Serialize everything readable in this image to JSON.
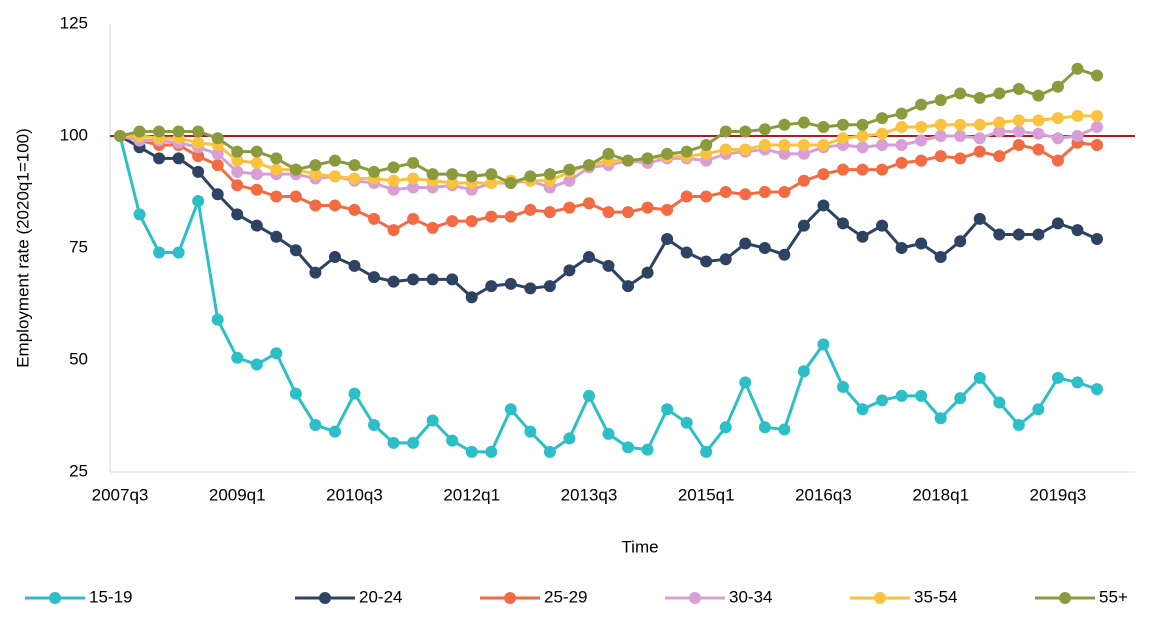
{
  "chart_data": {
    "type": "line",
    "x_label": "Time",
    "y_label": "Employment rate (2020q1=100)",
    "categories": [
      "2007q3",
      null,
      null,
      null,
      null,
      null,
      "2009q1",
      null,
      null,
      null,
      null,
      null,
      "2010q3",
      null,
      null,
      null,
      null,
      null,
      "2012q1",
      null,
      null,
      null,
      null,
      null,
      "2013q3",
      null,
      null,
      null,
      null,
      null,
      "2015q1",
      null,
      null,
      null,
      null,
      null,
      "2016q3",
      null,
      null,
      null,
      null,
      null,
      "2018q1",
      null,
      null,
      null,
      null,
      null,
      "2019q3",
      null,
      null
    ],
    "ylim": [
      25,
      125
    ],
    "yticks": [
      25,
      50,
      75,
      100,
      125
    ],
    "grid": false,
    "legend": "bottom",
    "reference_line": {
      "value": 100,
      "color": "#b01c1c"
    },
    "series": [
      {
        "name": "15-19",
        "color": "#2cbfc8",
        "values": [
          100,
          82.5,
          74,
          74,
          85.5,
          59,
          50.5,
          49,
          51.5,
          42.5,
          35.5,
          34,
          42.5,
          35.5,
          31.5,
          31.5,
          36.5,
          32,
          29.5,
          29.5,
          39,
          34,
          29.5,
          32.5,
          42,
          33.5,
          30.5,
          30,
          39,
          36,
          29.5,
          35,
          45,
          35,
          34.5,
          47.5,
          53.5,
          44,
          39,
          41,
          42,
          42,
          37,
          41.5,
          46,
          40.5,
          35.5,
          39,
          46,
          45,
          43.5
        ]
      },
      {
        "name": "20-24",
        "color": "#2e4262",
        "values": [
          100,
          97.5,
          95,
          95,
          92,
          87,
          82.5,
          80,
          77.5,
          74.5,
          69.5,
          73,
          71,
          68.5,
          67.5,
          68,
          68,
          68,
          64,
          66.5,
          67,
          66,
          66.5,
          70,
          73,
          71,
          66.5,
          69.5,
          77,
          74,
          72,
          72.5,
          76,
          75,
          73.5,
          80,
          84.5,
          80.5,
          77.5,
          80,
          75,
          76,
          73,
          76.5,
          81.5,
          78,
          78,
          78,
          80.5,
          79,
          77
        ]
      },
      {
        "name": "25-29",
        "color": "#f26b43",
        "values": [
          100,
          99,
          98,
          98,
          95.5,
          93.5,
          89,
          88,
          86.5,
          86.5,
          84.5,
          84.5,
          83.5,
          81.5,
          79,
          81.5,
          79.5,
          81,
          81,
          82,
          82,
          83.5,
          83,
          84,
          85,
          83,
          83,
          84,
          83.5,
          86.5,
          86.5,
          87.5,
          87,
          87.5,
          87.5,
          90,
          91.5,
          92.5,
          92.5,
          92.5,
          94,
          94.5,
          95.5,
          95,
          96.5,
          95.5,
          98,
          97,
          94.5,
          98.5,
          98
        ]
      },
      {
        "name": "30-34",
        "color": "#d79fd6",
        "values": [
          100,
          99,
          99,
          98.5,
          97.5,
          96,
          92,
          91.5,
          91.5,
          91.5,
          90.5,
          91,
          90,
          89.5,
          88,
          88.5,
          88.5,
          89,
          88,
          89.5,
          89.5,
          90,
          88.5,
          90,
          93,
          93.5,
          94.5,
          94,
          95,
          95,
          94.5,
          96,
          96.5,
          97,
          96,
          96,
          97.5,
          98,
          97.5,
          98,
          98,
          99,
          100,
          100,
          99.5,
          101,
          101,
          100.5,
          99.5,
          100,
          102
        ]
      },
      {
        "name": "35-54",
        "color": "#f9c23f",
        "values": [
          100,
          100,
          99.5,
          99.5,
          98.5,
          98,
          94.5,
          94,
          92.5,
          92.5,
          91.5,
          91,
          90.5,
          90.5,
          90,
          90.5,
          90,
          89.5,
          89.5,
          89.5,
          90,
          90,
          90,
          92,
          93.5,
          94.5,
          94.5,
          95,
          95.5,
          95.5,
          96,
          97,
          97,
          98,
          98,
          98,
          98,
          99.5,
          100,
          100.5,
          102,
          102,
          102.5,
          102.5,
          102.5,
          103,
          103.5,
          103.5,
          104,
          104.5,
          104.5
        ]
      },
      {
        "name": "55+",
        "color": "#8c9a3e",
        "values": [
          100,
          101,
          101,
          101,
          101,
          99.5,
          96.5,
          96.5,
          95,
          92.5,
          93.5,
          94.5,
          93.5,
          92,
          93,
          94,
          91.5,
          91.5,
          91,
          91.5,
          89.5,
          91,
          91.5,
          92.5,
          93.5,
          96,
          94.5,
          95,
          96,
          96.5,
          98,
          101,
          101,
          101.5,
          102.5,
          103,
          102,
          102.5,
          102.5,
          104,
          105,
          107,
          108,
          109.5,
          108.5,
          109.5,
          110.5,
          109,
          111,
          115,
          113.5
        ]
      }
    ]
  }
}
